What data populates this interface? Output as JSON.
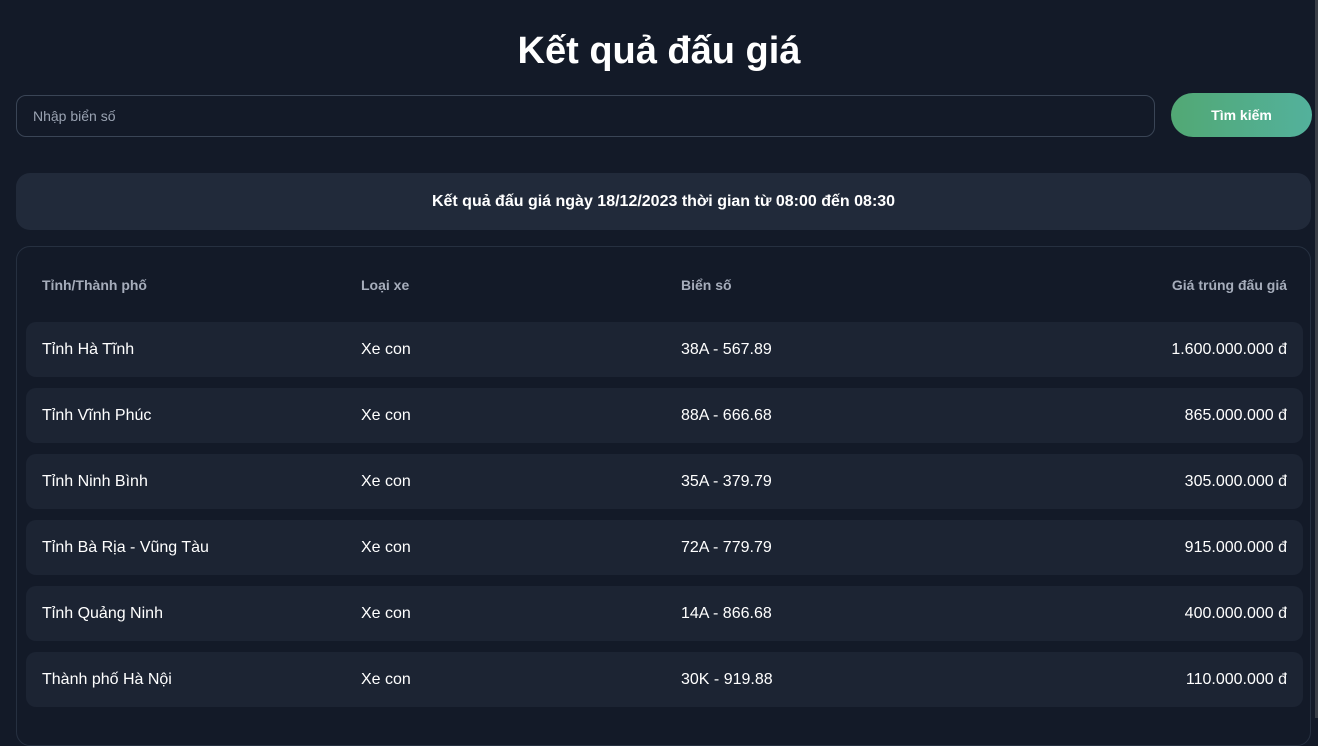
{
  "title": "Kết quả đấu giá",
  "search": {
    "placeholder": "Nhập biển số",
    "button": "Tìm kiếm"
  },
  "banner": "Kết quả đấu giá ngày 18/12/2023 thời gian từ 08:00 đến 08:30",
  "colors": {
    "accent_start": "#52a874",
    "accent_end": "#53b19c",
    "background": "#131a28"
  },
  "table": {
    "headers": [
      "Tỉnh/Thành phố",
      "Loại xe",
      "Biển số",
      "Giá trúng đấu giá"
    ],
    "rows": [
      [
        "Tỉnh Hà Tĩnh",
        "Xe con",
        "38A - 567.89",
        "1.600.000.000 đ"
      ],
      [
        "Tỉnh Vĩnh Phúc",
        "Xe con",
        "88A - 666.68",
        "865.000.000 đ"
      ],
      [
        "Tỉnh Ninh Bình",
        "Xe con",
        "35A - 379.79",
        "305.000.000 đ"
      ],
      [
        "Tỉnh Bà Rịa - Vũng Tàu",
        "Xe con",
        "72A - 779.79",
        "915.000.000 đ"
      ],
      [
        "Tỉnh Quảng Ninh",
        "Xe con",
        "14A - 866.68",
        "400.000.000 đ"
      ],
      [
        "Thành phố Hà Nội",
        "Xe con",
        "30K - 919.88",
        "110.000.000 đ"
      ]
    ]
  }
}
